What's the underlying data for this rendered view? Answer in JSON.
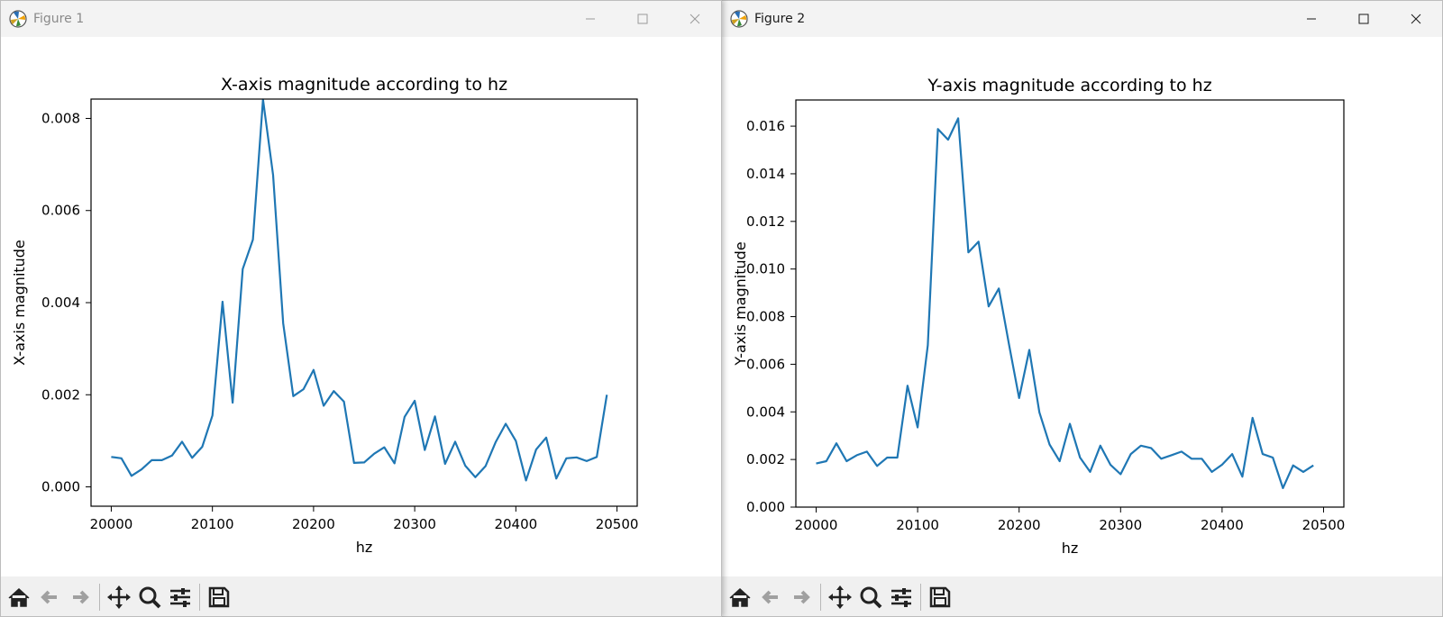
{
  "windows": [
    {
      "title": "Figure 1",
      "active": false,
      "toolbar": [
        "home-icon",
        "back-arrow-icon",
        "forward-arrow-icon",
        "pan-icon",
        "zoom-icon",
        "configure-subplots-icon",
        "save-icon"
      ],
      "chart_data": {
        "type": "line",
        "title": "X-axis magnitude according to hz",
        "xlabel": "hz",
        "ylabel": "X-axis magnitude",
        "xlim": [
          19980,
          20520
        ],
        "ylim": [
          -0.00042,
          0.00842
        ],
        "xticks": [
          20000,
          20100,
          20200,
          20300,
          20400,
          20500
        ],
        "yticks": [
          0.0,
          0.002,
          0.004,
          0.006,
          0.008
        ],
        "ytick_labels": [
          "0.000",
          "0.002",
          "0.004",
          "0.006",
          "0.008"
        ],
        "grid": false,
        "color": "#1f77b4",
        "x": [
          20000,
          20010,
          20020,
          20030,
          20040,
          20050,
          20060,
          20070,
          20080,
          20090,
          20100,
          20110,
          20120,
          20130,
          20140,
          20150,
          20160,
          20170,
          20180,
          20190,
          20200,
          20210,
          20220,
          20230,
          20240,
          20250,
          20260,
          20270,
          20280,
          20290,
          20300,
          20310,
          20320,
          20330,
          20340,
          20350,
          20360,
          20370,
          20380,
          20390,
          20400,
          20410,
          20420,
          20430,
          20440,
          20450,
          20460,
          20470,
          20480,
          20490
        ],
        "y": [
          0.00065,
          0.00062,
          0.00024,
          0.00038,
          0.00058,
          0.00058,
          0.00068,
          0.00098,
          0.00063,
          0.00087,
          0.00155,
          0.00402,
          0.00183,
          0.00473,
          0.00537,
          0.00841,
          0.00677,
          0.00355,
          0.00197,
          0.00212,
          0.00254,
          0.00176,
          0.00208,
          0.00185,
          0.00052,
          0.00053,
          0.00072,
          0.00086,
          0.00051,
          0.00152,
          0.00187,
          0.0008,
          0.00153,
          0.0005,
          0.00098,
          0.00046,
          0.00021,
          0.00045,
          0.00097,
          0.00137,
          0.001,
          0.00014,
          0.00081,
          0.00107,
          0.00018,
          0.00062,
          0.00064,
          0.00056,
          0.00065,
          0.002
        ]
      }
    },
    {
      "title": "Figure 2",
      "active": true,
      "toolbar": [
        "home-icon",
        "back-arrow-icon",
        "forward-arrow-icon",
        "pan-icon",
        "zoom-icon",
        "configure-subplots-icon",
        "save-icon"
      ],
      "chart_data": {
        "type": "line",
        "title": "Y-axis magnitude according to hz",
        "xlabel": "hz",
        "ylabel": "Y-axis magnitude",
        "xlim": [
          19980,
          20520
        ],
        "ylim": [
          0.0,
          0.0171
        ],
        "xticks": [
          20000,
          20100,
          20200,
          20300,
          20400,
          20500
        ],
        "yticks": [
          0.0,
          0.002,
          0.004,
          0.006,
          0.008,
          0.01,
          0.012,
          0.014,
          0.016
        ],
        "ytick_labels": [
          "0.000",
          "0.002",
          "0.004",
          "0.006",
          "0.008",
          "0.010",
          "0.012",
          "0.014",
          "0.016"
        ],
        "grid": false,
        "color": "#1f77b4",
        "x": [
          20000,
          20010,
          20020,
          20030,
          20040,
          20050,
          20060,
          20070,
          20080,
          20090,
          20100,
          20110,
          20120,
          20130,
          20140,
          20150,
          20160,
          20170,
          20180,
          20190,
          20200,
          20210,
          20220,
          20230,
          20240,
          20250,
          20260,
          20270,
          20280,
          20290,
          20300,
          20310,
          20320,
          20330,
          20340,
          20350,
          20360,
          20370,
          20380,
          20390,
          20400,
          20410,
          20420,
          20430,
          20440,
          20450,
          20460,
          20470,
          20480,
          20490
        ],
        "y": [
          0.00183,
          0.00193,
          0.00268,
          0.00193,
          0.00218,
          0.00233,
          0.00173,
          0.00208,
          0.00208,
          0.0051,
          0.00335,
          0.0068,
          0.01588,
          0.01543,
          0.01633,
          0.0107,
          0.01115,
          0.00843,
          0.00918,
          0.00685,
          0.00458,
          0.0066,
          0.00398,
          0.00263,
          0.00193,
          0.0035,
          0.00208,
          0.00148,
          0.00258,
          0.00178,
          0.00138,
          0.00223,
          0.00258,
          0.00248,
          0.00203,
          0.00218,
          0.00233,
          0.00203,
          0.00203,
          0.00148,
          0.00178,
          0.00223,
          0.00128,
          0.00375,
          0.00223,
          0.00208,
          0.0008,
          0.00175,
          0.00148,
          0.00175
        ]
      }
    }
  ]
}
